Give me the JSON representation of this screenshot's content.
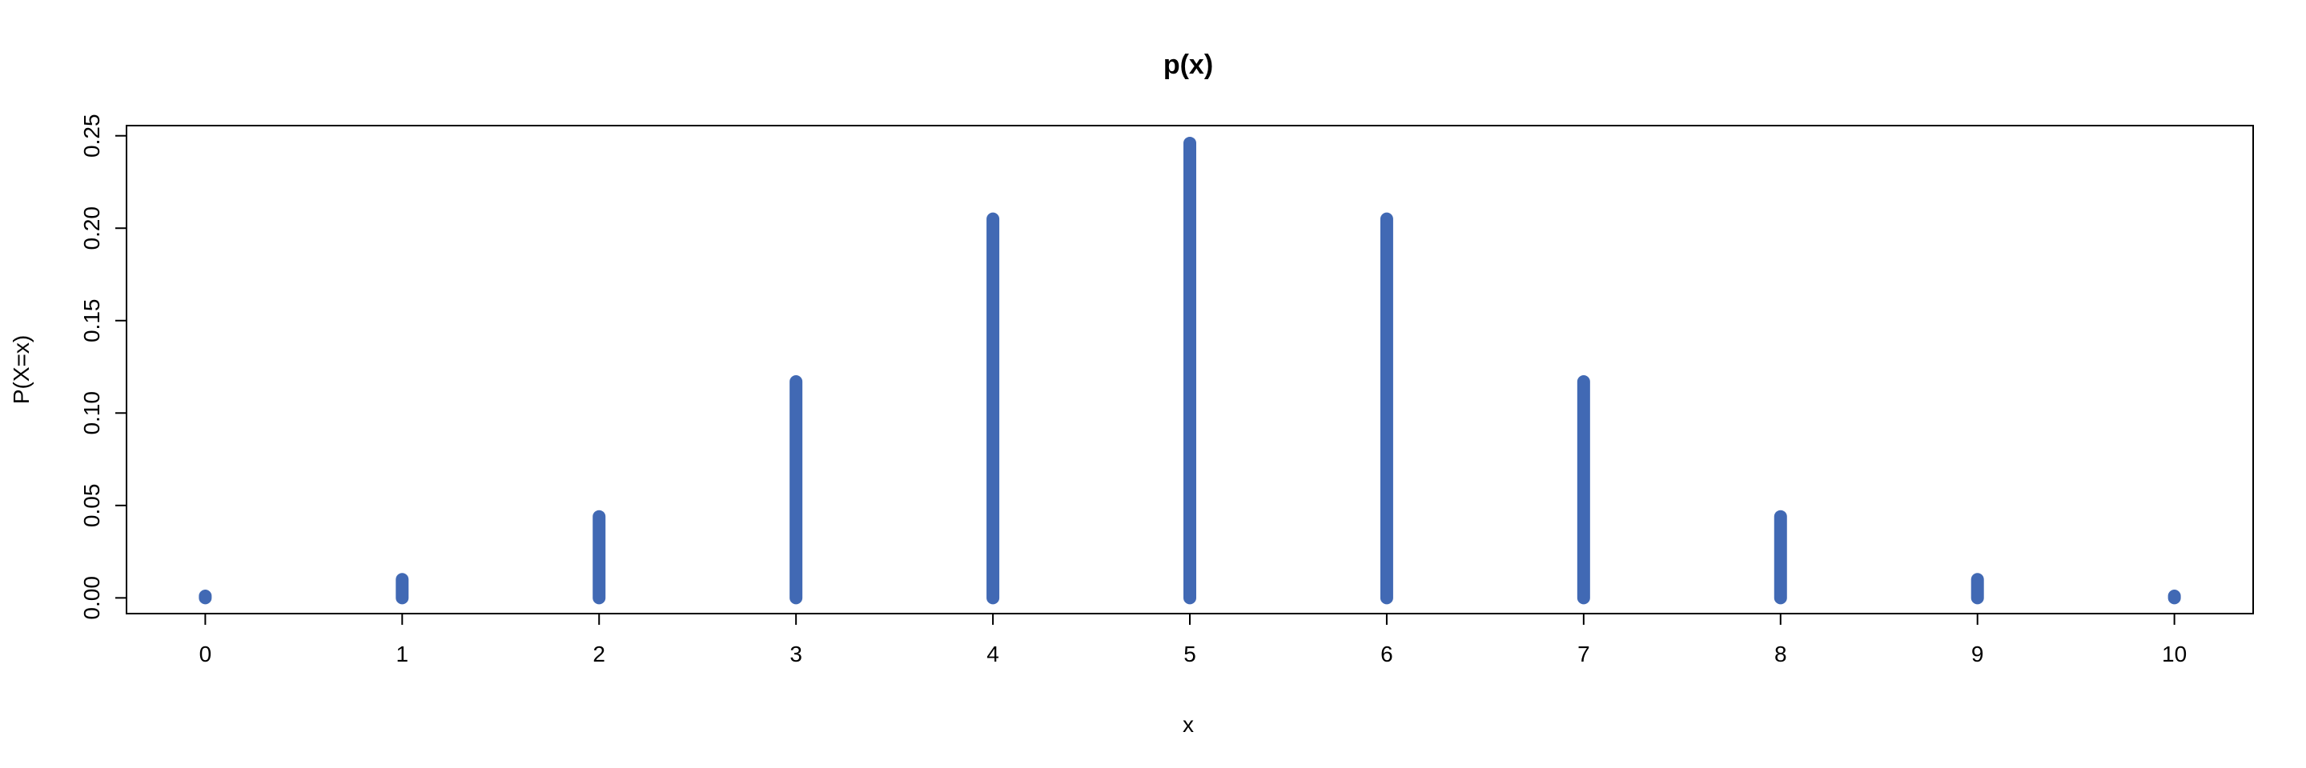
{
  "chart_data": {
    "type": "bar",
    "title": "p(x)",
    "xlabel": "x",
    "ylabel": "P(X=x)",
    "x": [
      0,
      1,
      2,
      3,
      4,
      5,
      6,
      7,
      8,
      9,
      10
    ],
    "values": [
      0.001,
      0.01,
      0.044,
      0.117,
      0.205,
      0.246,
      0.205,
      0.117,
      0.044,
      0.01,
      0.001
    ],
    "x_ticks": [
      "0",
      "1",
      "2",
      "3",
      "4",
      "5",
      "6",
      "7",
      "8",
      "9",
      "10"
    ],
    "y_ticks": [
      "0.00",
      "0.05",
      "0.10",
      "0.15",
      "0.20",
      "0.25"
    ],
    "xlim": [
      -0.4,
      10.4
    ],
    "ylim": [
      -0.0085,
      0.2555
    ],
    "grid": false,
    "color": "#4169B4"
  }
}
